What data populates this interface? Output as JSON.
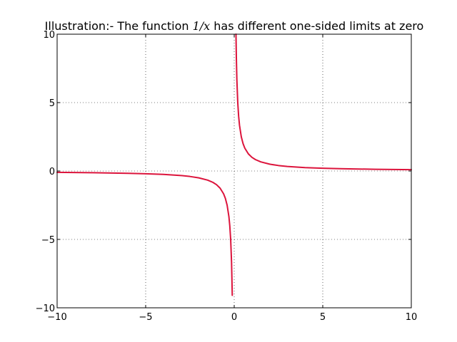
{
  "chart_data": {
    "type": "line",
    "title_prefix": "Illustration:- The function ",
    "title_math": "1/x",
    "title_suffix": " has different one-sided limits at zero",
    "xlabel": "",
    "ylabel": "",
    "xlim": [
      -10,
      10
    ],
    "ylim": [
      -10,
      10
    ],
    "x_ticks": [
      -10,
      -5,
      0,
      5,
      10
    ],
    "y_ticks": [
      -10,
      -5,
      0,
      5,
      10
    ],
    "x_tick_labels": [
      "−10",
      "−5",
      "0",
      "5",
      "10"
    ],
    "y_tick_labels": [
      "−10",
      "−5",
      "0",
      "5",
      "10"
    ],
    "grid": true,
    "legend": "none",
    "series": [
      {
        "function": "1/x",
        "color": "#dc143c",
        "segments": [
          {
            "x": [
              -10,
              -8,
              -6,
              -5,
              -4,
              -3,
              -2.5,
              -2,
              -1.5,
              -1.2,
              -1,
              -0.8,
              -0.6,
              -0.5,
              -0.4,
              -0.3,
              -0.25,
              -0.2,
              -0.15,
              -0.11
            ],
            "y": [
              -0.1,
              -0.125,
              -0.167,
              -0.2,
              -0.25,
              -0.333,
              -0.4,
              -0.5,
              -0.667,
              -0.833,
              -1,
              -1.25,
              -1.667,
              -2,
              -2.5,
              -3.333,
              -4,
              -5,
              -6.667,
              -9.09
            ]
          },
          {
            "x": [
              0.1,
              0.12,
              0.15,
              0.2,
              0.25,
              0.3,
              0.4,
              0.5,
              0.6,
              0.8,
              1,
              1.2,
              1.5,
              2,
              2.5,
              3,
              4,
              5,
              6,
              8,
              10
            ],
            "y": [
              10,
              8.333,
              6.667,
              5,
              4,
              3.333,
              2.5,
              2,
              1.667,
              1.25,
              1,
              0.833,
              0.667,
              0.5,
              0.4,
              0.333,
              0.25,
              0.2,
              0.167,
              0.125,
              0.1
            ]
          }
        ]
      }
    ]
  }
}
